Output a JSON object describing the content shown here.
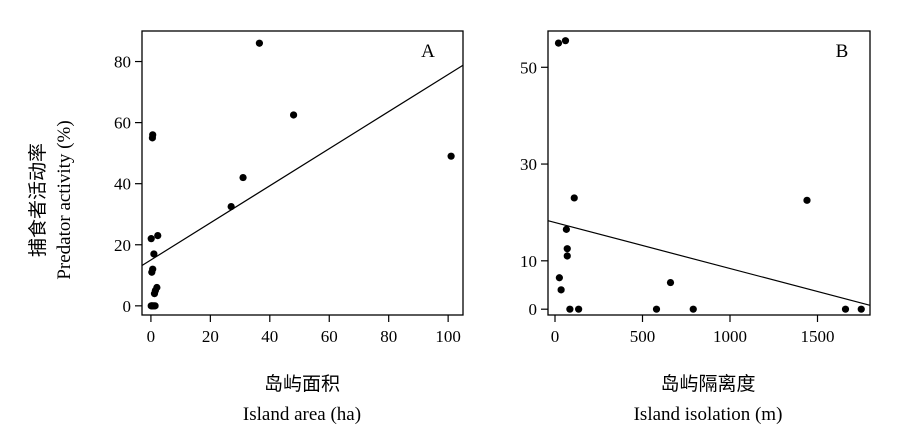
{
  "figure": {
    "ylabel_cn": "捕食者活动率",
    "ylabel_en": "Predator activity (%)",
    "colors": {
      "ink": "#000000",
      "background": "#ffffff"
    }
  },
  "chart_data": [
    {
      "type": "scatter",
      "panel": "A",
      "xlabel_cn": "岛屿面积",
      "xlabel_en": "Island area (ha)",
      "xlim": [
        -3,
        105
      ],
      "ylim": [
        -3,
        90
      ],
      "xticks": [
        0,
        20,
        40,
        60,
        80,
        100
      ],
      "yticks": [
        0,
        20,
        40,
        60,
        80
      ],
      "grid": false,
      "legend": "none",
      "points": [
        {
          "x": 0.1,
          "y": 0
        },
        {
          "x": 0.3,
          "y": 0
        },
        {
          "x": 0.6,
          "y": 0
        },
        {
          "x": 1.0,
          "y": 0
        },
        {
          "x": 1.4,
          "y": 0
        },
        {
          "x": 1.2,
          "y": 4
        },
        {
          "x": 1.5,
          "y": 5
        },
        {
          "x": 2.0,
          "y": 6
        },
        {
          "x": 0.3,
          "y": 11
        },
        {
          "x": 0.6,
          "y": 12
        },
        {
          "x": 1.0,
          "y": 17
        },
        {
          "x": 0.1,
          "y": 22
        },
        {
          "x": 2.3,
          "y": 23
        },
        {
          "x": 0.5,
          "y": 55
        },
        {
          "x": 0.6,
          "y": 56
        },
        {
          "x": 27,
          "y": 32.5
        },
        {
          "x": 31,
          "y": 42
        },
        {
          "x": 36.5,
          "y": 86
        },
        {
          "x": 48,
          "y": 62.5
        },
        {
          "x": 101,
          "y": 49
        }
      ],
      "fit_line": {
        "x": [
          -3,
          105
        ],
        "y": [
          13.2,
          78.8
        ]
      }
    },
    {
      "type": "scatter",
      "panel": "B",
      "xlabel_cn": "岛屿隔离度",
      "xlabel_en": "Island isolation (m)",
      "xlim": [
        -40,
        1800
      ],
      "ylim": [
        -1.2,
        57.5
      ],
      "xticks": [
        0,
        500,
        1000,
        1500
      ],
      "yticks": [
        0,
        10,
        30,
        50
      ],
      "grid": false,
      "legend": "none",
      "points": [
        {
          "x": 20,
          "y": 55
        },
        {
          "x": 60,
          "y": 55.5
        },
        {
          "x": 110,
          "y": 23
        },
        {
          "x": 65,
          "y": 16.5
        },
        {
          "x": 70,
          "y": 12.5
        },
        {
          "x": 70,
          "y": 11
        },
        {
          "x": 25,
          "y": 6.5
        },
        {
          "x": 35,
          "y": 4
        },
        {
          "x": 85,
          "y": 0
        },
        {
          "x": 135,
          "y": 0
        },
        {
          "x": 580,
          "y": 0
        },
        {
          "x": 660,
          "y": 5.5
        },
        {
          "x": 790,
          "y": 0
        },
        {
          "x": 1440,
          "y": 22.5
        },
        {
          "x": 1660,
          "y": 0
        },
        {
          "x": 1750,
          "y": 0
        }
      ],
      "fit_line": {
        "x": [
          -40,
          1800
        ],
        "y": [
          18.3,
          0.8
        ]
      }
    }
  ]
}
